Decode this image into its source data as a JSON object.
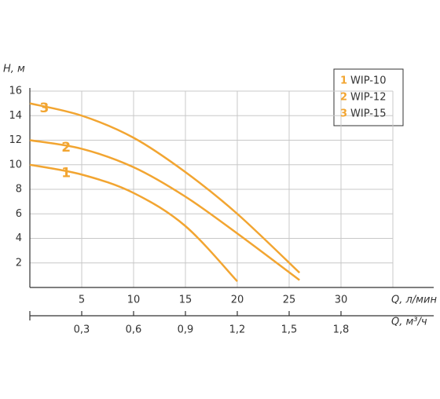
{
  "chart_data": {
    "type": "line",
    "ylabel": "H, м",
    "xlabel": "Q, л/мин",
    "x2label": "Q, м³/ч",
    "xlim": [
      0,
      35
    ],
    "xticks": [
      5,
      10,
      15,
      20,
      25,
      30
    ],
    "x2lim": [
      0,
      2.1
    ],
    "x2ticks": [
      {
        "value": 0.3,
        "label": "0,3"
      },
      {
        "value": 0.6,
        "label": "0,6"
      },
      {
        "value": 0.9,
        "label": "0,9"
      },
      {
        "value": 1.2,
        "label": "1,2"
      },
      {
        "value": 1.5,
        "label": "1,5"
      },
      {
        "value": 1.8,
        "label": "1,8"
      }
    ],
    "ylim": [
      0,
      16
    ],
    "yticks": [
      2,
      4,
      6,
      8,
      10,
      12,
      14,
      16
    ],
    "grid": true,
    "series": [
      {
        "name": "WIP-10",
        "label": "1",
        "color": "#f2a531",
        "x": [
          0,
          5,
          10,
          15,
          20
        ],
        "values": [
          10,
          9.2,
          7.7,
          5.0,
          0.5
        ]
      },
      {
        "name": "WIP-12",
        "label": "2",
        "color": "#f2a531",
        "x": [
          0,
          5,
          10,
          15,
          20,
          26
        ],
        "values": [
          12,
          11.3,
          9.8,
          7.4,
          4.4,
          0.6
        ]
      },
      {
        "name": "WIP-15",
        "label": "3",
        "color": "#f2a531",
        "x": [
          0,
          5,
          10,
          15,
          20,
          26
        ],
        "values": [
          15,
          14,
          12.2,
          9.4,
          6,
          1.2
        ]
      }
    ]
  }
}
